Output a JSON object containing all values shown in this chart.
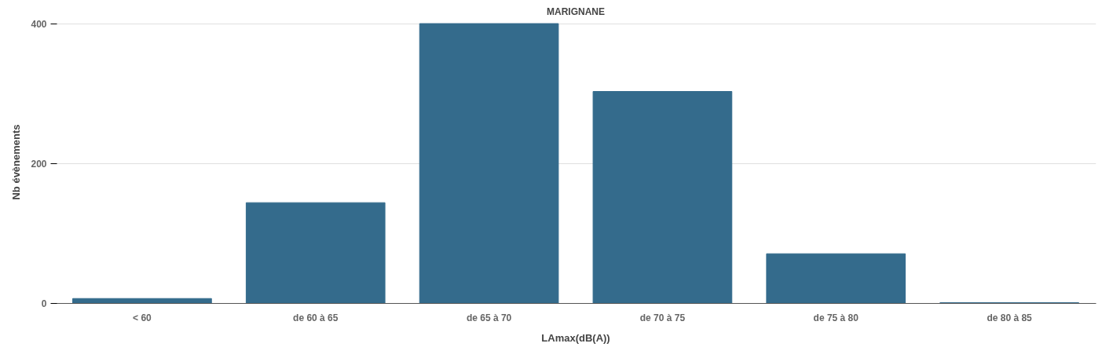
{
  "chart_data": {
    "type": "bar",
    "title": "MARIGNANE",
    "xlabel": "LAmax(dB(A))",
    "ylabel": "Nb évènements",
    "categories": [
      "< 60",
      "de 60 à 65",
      "de 65 à 70",
      "de 70 à 75",
      "de 75 à 80",
      "de 80 à 85"
    ],
    "values": [
      7,
      144,
      400,
      303,
      71,
      1
    ],
    "color": "#346b8c",
    "ylim": [
      0,
      400
    ],
    "yticks": [
      0,
      200,
      400
    ],
    "grid": "y"
  }
}
